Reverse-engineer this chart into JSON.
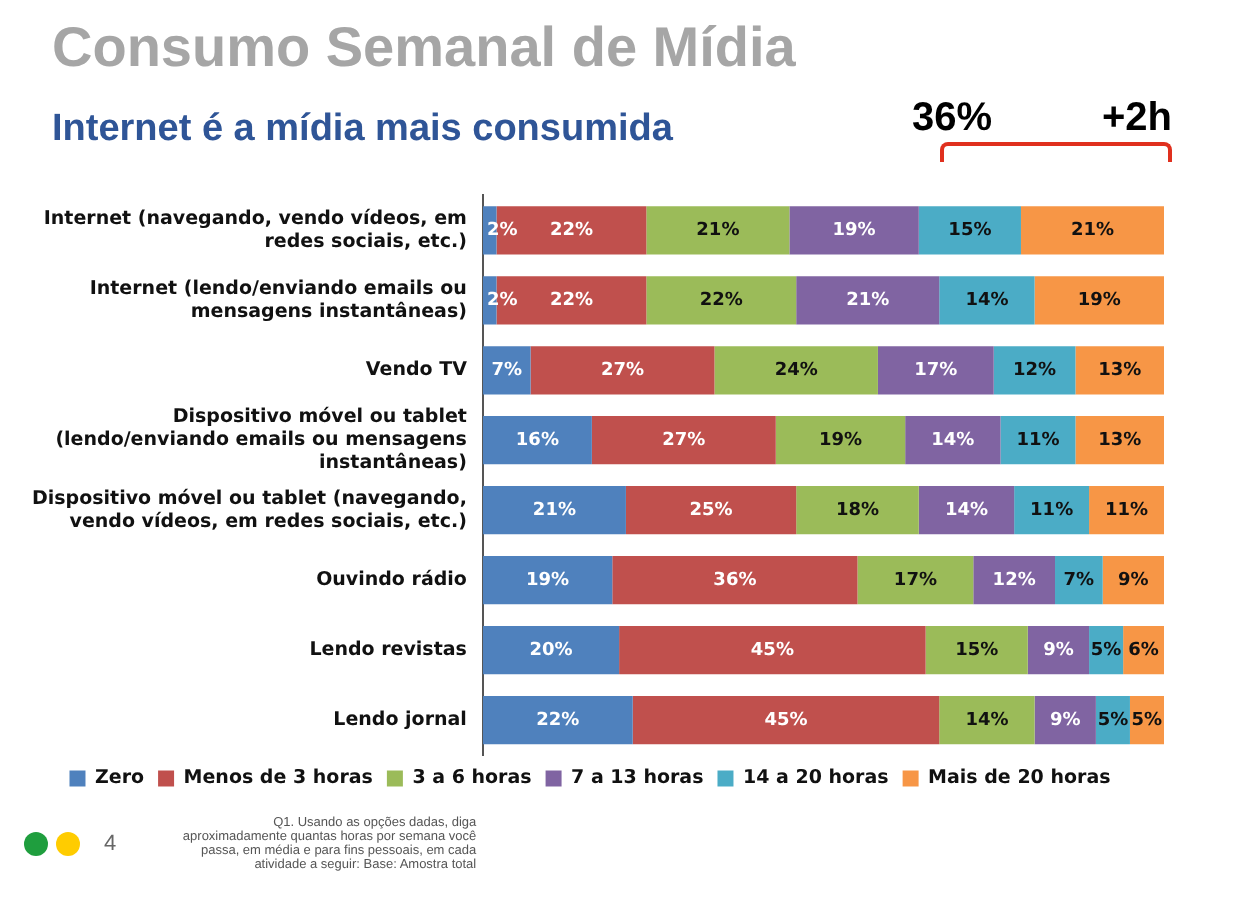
{
  "chart_data": {
    "type": "bar",
    "orientation": "horizontal",
    "stacked": true,
    "title": "Consumo Semanal de Mídia",
    "subtitle": "Internet é a mídia mais consumida",
    "categories": [
      "Internet (navegando, vendo vídeos, em redes sociais, etc.)",
      "Internet (lendo/enviando emails ou mensagens instantâneas)",
      "Vendo TV",
      "Dispositivo móvel ou tablet (lendo/enviando emails ou mensagens instantâneas)",
      "Dispositivo móvel ou tablet (navegando, vendo vídeos, em redes sociais, etc.)",
      "Ouvindo rádio",
      "Lendo revistas",
      "Lendo jornal"
    ],
    "series": [
      {
        "name": "Zero",
        "color": "#4f81bd",
        "values": [
          2,
          2,
          7,
          16,
          21,
          19,
          20,
          22
        ],
        "value_labels": [
          "2%",
          "2%",
          "7%",
          "16%",
          "21%",
          "19%",
          "20%",
          "22%"
        ]
      },
      {
        "name": "Menos de 3 horas",
        "color": "#c0504d",
        "values": [
          22,
          22,
          27,
          27,
          25,
          36,
          45,
          45
        ],
        "value_labels": [
          "22%",
          "22%",
          "27%",
          "27%",
          "25%",
          "36%",
          "45%",
          "45%"
        ]
      },
      {
        "name": "3 a 6 horas",
        "color": "#9bbb59",
        "values": [
          21,
          22,
          24,
          19,
          18,
          17,
          15,
          14
        ],
        "value_labels": [
          "21%",
          "22%",
          "24%",
          "19%",
          "18%",
          "17%",
          "15%",
          "14%"
        ]
      },
      {
        "name": "7 a 13 horas",
        "color": "#8064a2",
        "values": [
          19,
          21,
          17,
          14,
          14,
          12,
          9,
          9
        ],
        "value_labels": [
          "19%",
          "21%",
          "17%",
          "14%",
          "14%",
          "12%",
          "9%",
          "9%"
        ]
      },
      {
        "name": "14 a 20 horas",
        "color": "#4bacc6",
        "values": [
          15,
          14,
          12,
          11,
          11,
          7,
          5,
          5
        ],
        "value_labels": [
          "15%",
          "14%",
          "12%",
          "11%",
          "11%",
          "7%",
          "5%",
          "5%"
        ]
      },
      {
        "name": "Mais de 20 horas",
        "color": "#f79646",
        "values": [
          21,
          19,
          13,
          13,
          11,
          9,
          6,
          5
        ],
        "value_labels": [
          "21%",
          "19%",
          "13%",
          "13%",
          "11%",
          "9%",
          "6%",
          "5%"
        ]
      }
    ],
    "tick_labels": "y",
    "grid": false,
    "legend": "bottom",
    "annotations": [
      "36%",
      "+2h",
      "4",
      "Q1. Usando as opções dadas, diga aproximadamente quantas horas por semana você passa, em média e para fins pessoais, em cada atividade a seguir: Base: Amostra total"
    ]
  }
}
